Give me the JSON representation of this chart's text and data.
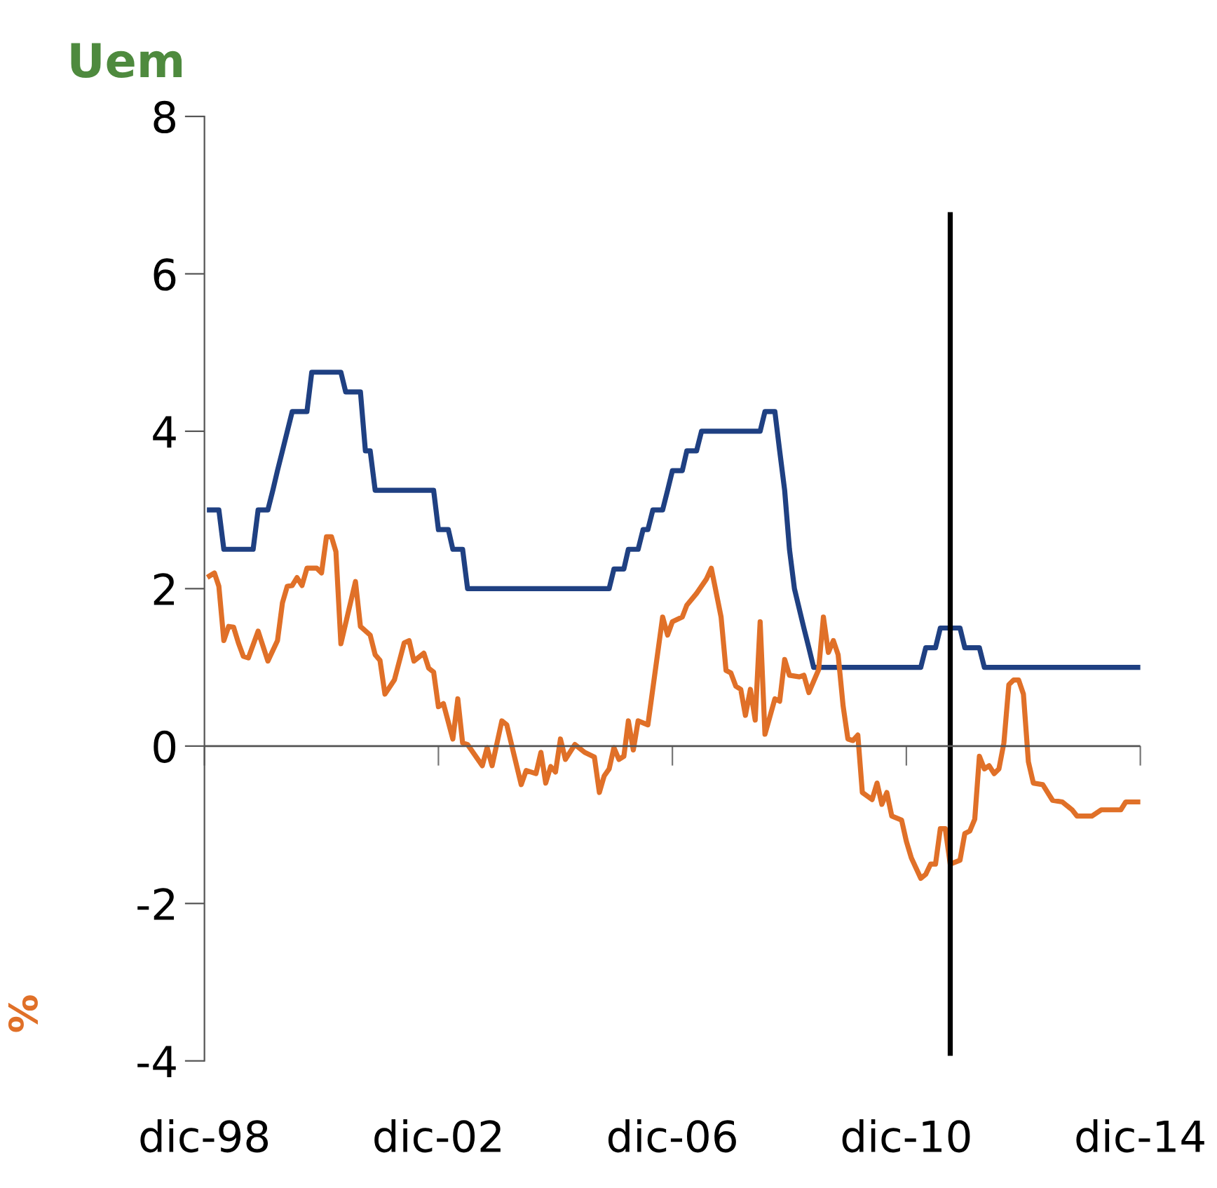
{
  "chart_data": {
    "type": "line",
    "title": "Uem",
    "ylabel": "%",
    "xlim": [
      "1998-12",
      "2014-12"
    ],
    "xticks": [
      {
        "value": "1998-12",
        "label": "dic-98"
      },
      {
        "value": "2002-12",
        "label": "dic-02"
      },
      {
        "value": "2006-12",
        "label": "dic-06"
      },
      {
        "value": "2010-12",
        "label": "dic-10"
      },
      {
        "value": "2014-12",
        "label": "dic-14"
      }
    ],
    "ylim": [
      -4,
      8
    ],
    "yticks": [
      {
        "value": -4,
        "label": "-4"
      },
      {
        "value": -2,
        "label": "-2"
      },
      0,
      2,
      4,
      6,
      8
    ],
    "grid": false,
    "legend": false,
    "marker": "none",
    "line_style": "solid",
    "ref_lines": [
      {
        "axis": "x",
        "value": "2011-09",
        "color": "#000000"
      },
      {
        "axis": "y",
        "value": 0,
        "color": "#555555"
      }
    ],
    "series": [
      {
        "color": "#1f4082",
        "x": [
          "1999-01",
          "1999-03",
          "1999-04",
          "1999-10",
          "1999-11",
          "2000-01",
          "2000-02",
          "2000-03",
          "2000-04",
          "2000-06",
          "2000-09",
          "2000-10",
          "2001-04",
          "2001-05",
          "2001-08",
          "2001-09",
          "2001-10",
          "2001-11",
          "2002-11",
          "2002-12",
          "2003-02",
          "2003-03",
          "2003-05",
          "2003-06",
          "2005-11",
          "2005-12",
          "2006-02",
          "2006-03",
          "2006-05",
          "2006-06",
          "2006-07",
          "2006-08",
          "2006-10",
          "2006-11",
          "2006-12",
          "2007-02",
          "2007-03",
          "2007-05",
          "2007-06",
          "2008-06",
          "2008-07",
          "2008-09",
          "2008-10",
          "2008-11",
          "2008-12",
          "2009-01",
          "2009-03",
          "2009-04",
          "2009-05",
          "2011-03",
          "2011-04",
          "2011-06",
          "2011-07",
          "2011-11",
          "2011-12",
          "2012-03",
          "2012-04",
          "2014-12"
        ],
        "values": [
          3.0,
          3.0,
          2.5,
          2.5,
          3.0,
          3.0,
          3.25,
          3.5,
          3.75,
          4.25,
          4.25,
          4.75,
          4.75,
          4.5,
          4.5,
          3.75,
          3.75,
          3.25,
          3.25,
          2.75,
          2.75,
          2.5,
          2.5,
          2.0,
          2.0,
          2.25,
          2.25,
          2.5,
          2.5,
          2.75,
          2.75,
          3.0,
          3.0,
          3.25,
          3.5,
          3.5,
          3.75,
          3.75,
          4.0,
          4.0,
          4.25,
          4.25,
          3.75,
          3.25,
          2.5,
          2.0,
          1.5,
          1.25,
          1.0,
          1.0,
          1.25,
          1.25,
          1.5,
          1.5,
          1.25,
          1.25,
          1.0,
          1.0
        ]
      },
      {
        "color": "#e07028",
        "x": [
          "1999-01",
          "1999-02",
          "1999-03",
          "1999-04",
          "1999-05",
          "1999-06",
          "1999-07",
          "1999-08",
          "1999-09",
          "1999-11",
          "2000-01",
          "2000-03",
          "2000-04",
          "2000-05",
          "2000-06",
          "2000-07",
          "2000-08",
          "2000-09",
          "2000-11",
          "2000-12",
          "2001-01",
          "2001-02",
          "2001-03",
          "2001-04",
          "2001-07",
          "2001-08",
          "2001-10",
          "2001-11",
          "2001-12",
          "2002-01",
          "2002-03",
          "2002-05",
          "2002-06",
          "2002-07",
          "2002-09",
          "2002-10",
          "2002-11",
          "2002-12",
          "2003-01",
          "2003-03",
          "2003-04",
          "2003-05",
          "2003-06",
          "2003-09",
          "2003-10",
          "2003-11",
          "2004-01",
          "2004-02",
          "2004-05",
          "2004-06",
          "2004-08",
          "2004-09",
          "2004-10",
          "2004-11",
          "2004-12",
          "2005-01",
          "2005-02",
          "2005-04",
          "2005-06",
          "2005-08",
          "2005-09",
          "2005-10",
          "2005-11",
          "2005-12",
          "2006-01",
          "2006-02",
          "2006-03",
          "2006-04",
          "2006-05",
          "2006-07",
          "2006-10",
          "2006-11",
          "2006-12",
          "2007-02",
          "2007-03",
          "2007-05",
          "2007-07",
          "2007-08",
          "2007-10",
          "2007-11",
          "2007-12",
          "2008-01",
          "2008-02",
          "2008-03",
          "2008-04",
          "2008-05",
          "2008-06",
          "2008-07",
          "2008-09",
          "2008-10",
          "2008-11",
          "2008-12",
          "2009-02",
          "2009-03",
          "2009-04",
          "2009-06",
          "2009-07",
          "2009-08",
          "2009-09",
          "2009-10",
          "2009-11",
          "2009-12",
          "2010-01",
          "2010-02",
          "2010-03",
          "2010-05",
          "2010-06",
          "2010-07",
          "2010-08",
          "2010-09",
          "2010-11",
          "2010-12",
          "2011-01",
          "2011-03",
          "2011-04",
          "2011-05",
          "2011-06",
          "2011-07",
          "2011-08",
          "2011-09",
          "2011-11",
          "2011-12",
          "2012-01",
          "2012-02",
          "2012-03",
          "2012-04",
          "2012-05",
          "2012-06",
          "2012-07",
          "2012-08",
          "2012-09",
          "2012-10",
          "2012-11",
          "2012-12",
          "2013-01",
          "2013-02",
          "2013-04",
          "2013-06",
          "2013-08",
          "2013-10",
          "2013-11",
          "2014-02",
          "2014-04",
          "2014-08",
          "2014-09",
          "2014-12"
        ],
        "values": [
          2.16,
          2.2,
          2.03,
          1.34,
          1.52,
          1.51,
          1.31,
          1.14,
          1.12,
          1.46,
          1.08,
          1.34,
          1.82,
          2.03,
          2.04,
          2.14,
          2.04,
          2.26,
          2.26,
          2.2,
          2.66,
          2.66,
          2.47,
          1.3,
          2.09,
          1.52,
          1.41,
          1.16,
          1.09,
          0.66,
          0.84,
          1.31,
          1.34,
          1.08,
          1.18,
          0.99,
          0.94,
          0.5,
          0.54,
          0.09,
          0.6,
          0.04,
          0.02,
          -0.25,
          -0.02,
          -0.25,
          0.32,
          0.27,
          -0.49,
          -0.31,
          -0.35,
          -0.08,
          -0.47,
          -0.26,
          -0.33,
          0.09,
          -0.17,
          0.02,
          -0.08,
          -0.14,
          -0.59,
          -0.38,
          -0.29,
          -0.02,
          -0.17,
          -0.13,
          0.32,
          -0.05,
          0.32,
          0.27,
          1.64,
          1.41,
          1.58,
          1.64,
          1.79,
          1.94,
          2.12,
          2.26,
          1.64,
          0.96,
          0.93,
          0.76,
          0.72,
          0.39,
          0.72,
          0.33,
          1.58,
          0.15,
          0.6,
          0.57,
          1.1,
          0.9,
          0.88,
          0.9,
          0.68,
          0.97,
          1.64,
          1.19,
          1.34,
          1.16,
          0.51,
          0.09,
          0.07,
          0.14,
          -0.59,
          -0.68,
          -0.47,
          -0.74,
          -0.59,
          -0.89,
          -0.94,
          -1.21,
          -1.42,
          -1.68,
          -1.63,
          -1.5,
          -1.5,
          -1.05,
          -1.05,
          -1.5,
          -1.45,
          -1.11,
          -1.08,
          -0.93,
          -0.13,
          -0.29,
          -0.25,
          -0.35,
          -0.29,
          0.04,
          0.78,
          0.84,
          0.84,
          0.66,
          -0.2,
          -0.47,
          -0.49,
          -0.69,
          -0.71,
          -0.81,
          -0.89,
          -0.89,
          -0.81,
          -0.81,
          -0.71,
          -0.71
        ]
      }
    ]
  }
}
